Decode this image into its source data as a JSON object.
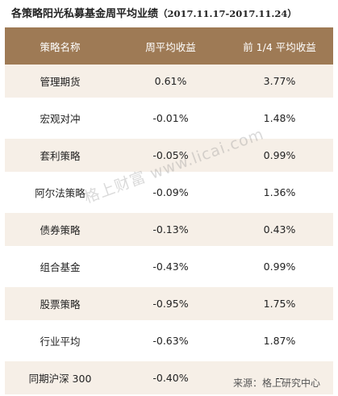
{
  "title": {
    "main": "各策略阳光私募基金周平均业绩",
    "range": "（2017.11.17-2017.11.24）"
  },
  "table": {
    "headers": [
      "策略名称",
      "周平均收益",
      "前 1/4 平均收益"
    ],
    "rows": [
      {
        "strategy": "管理期货",
        "weekly": "0.61%",
        "top_quartile": "3.77%"
      },
      {
        "strategy": "宏观对冲",
        "weekly": "-0.01%",
        "top_quartile": "1.48%"
      },
      {
        "strategy": "套利策略",
        "weekly": "-0.05%",
        "top_quartile": "0.99%"
      },
      {
        "strategy": "阿尔法策略",
        "weekly": "-0.09%",
        "top_quartile": "1.36%"
      },
      {
        "strategy": "债券策略",
        "weekly": "-0.13%",
        "top_quartile": "0.43%"
      },
      {
        "strategy": "组合基金",
        "weekly": "-0.43%",
        "top_quartile": "0.99%"
      },
      {
        "strategy": "股票策略",
        "weekly": "-0.95%",
        "top_quartile": "1.75%"
      },
      {
        "strategy": "行业平均",
        "weekly": "-0.63%",
        "top_quartile": "1.87%"
      },
      {
        "strategy": "同期沪深 300",
        "weekly": "-0.40%",
        "top_quartile": "--"
      }
    ]
  },
  "watermark": "格上财富 www.licai.com",
  "source": "来源：格上研究中心",
  "colors": {
    "header_bg": "#9e7a55",
    "row_tint": "#f6efe7"
  }
}
